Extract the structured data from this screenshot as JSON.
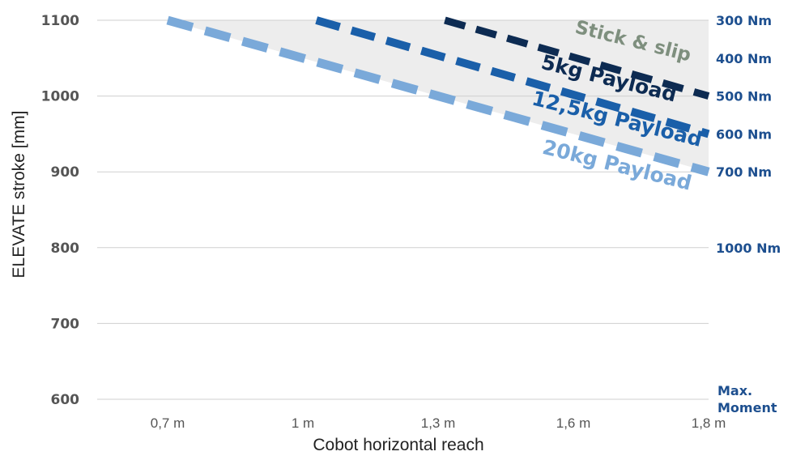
{
  "chart_data": {
    "type": "line",
    "title": "",
    "xlabel": "Cobot horizontal reach",
    "ylabel": "ELEVATE stroke [mm]",
    "ylim": [
      600,
      1100
    ],
    "yticks": [
      "1100",
      "1000",
      "900",
      "800",
      "700",
      "600"
    ],
    "x_categories": [
      "0,7 m",
      "1 m",
      "1,3 m",
      "1,6 m",
      "1,8 m"
    ],
    "grid": true,
    "series": [
      {
        "name": "5kg Payload",
        "color": "#0d2b52",
        "points": [
          [
            2.05,
            1100
          ],
          [
            4,
            1000
          ]
        ]
      },
      {
        "name": "12,5kg Payload",
        "color": "#1a5fa9",
        "points": [
          [
            1.1,
            1100
          ],
          [
            4,
            950
          ]
        ]
      },
      {
        "name": "20kg Payload",
        "color": "#7aa9d9",
        "points": [
          [
            0,
            1100
          ],
          [
            4,
            900
          ]
        ]
      }
    ],
    "region": {
      "name": "Stick & slip",
      "color": "#7e8f7e"
    },
    "moment_axis": {
      "labels": [
        {
          "text": "300 Nm",
          "y": 1100
        },
        {
          "text": "400 Nm",
          "y": 1050
        },
        {
          "text": "500 Nm",
          "y": 1000
        },
        {
          "text": "600 Nm",
          "y": 950
        },
        {
          "text": "700 Nm",
          "y": 900
        },
        {
          "text": "1000 Nm",
          "y": 800
        }
      ],
      "title_line1": "Max.",
      "title_line2": "Moment",
      "color": "#1d4f8f"
    }
  }
}
